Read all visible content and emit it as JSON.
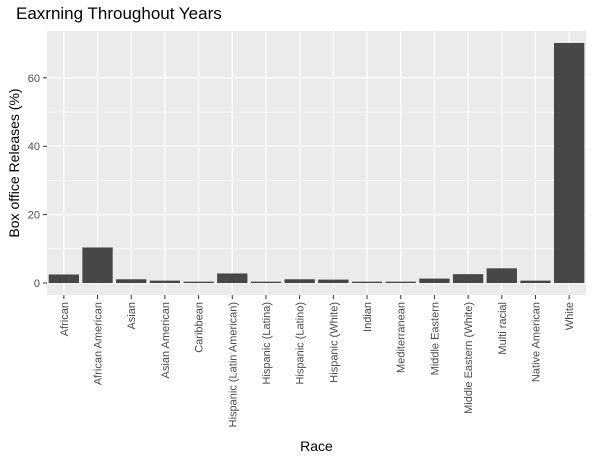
{
  "chart_data": {
    "type": "bar",
    "title": "Eaxrning Throughout Years",
    "xlabel": "Race",
    "ylabel": "Box office Releases (%)",
    "categories": [
      "African",
      "African American",
      "Asian",
      "Asian American",
      "Caribbean",
      "Hispanic (Latin American)",
      "Hispanic (Latina)",
      "Hispanic (Latino)",
      "Hispanic (White)",
      "Indian",
      "Mediterranean",
      "Middle Eastern",
      "Middle Eastern (White)",
      "Multi racial",
      "Native American",
      "White"
    ],
    "values": [
      2.5,
      10.4,
      1.1,
      0.7,
      0.4,
      2.8,
      0.4,
      1.1,
      1.0,
      0.4,
      0.4,
      1.3,
      2.6,
      4.3,
      0.7,
      70.2
    ],
    "yticks": [
      0,
      20,
      40,
      60
    ],
    "ylim": [
      -3.5,
      73.7
    ],
    "grid": true,
    "bar_color": "#474747",
    "panel_color": "#ebebeb",
    "grid_color": "#ffffff"
  }
}
